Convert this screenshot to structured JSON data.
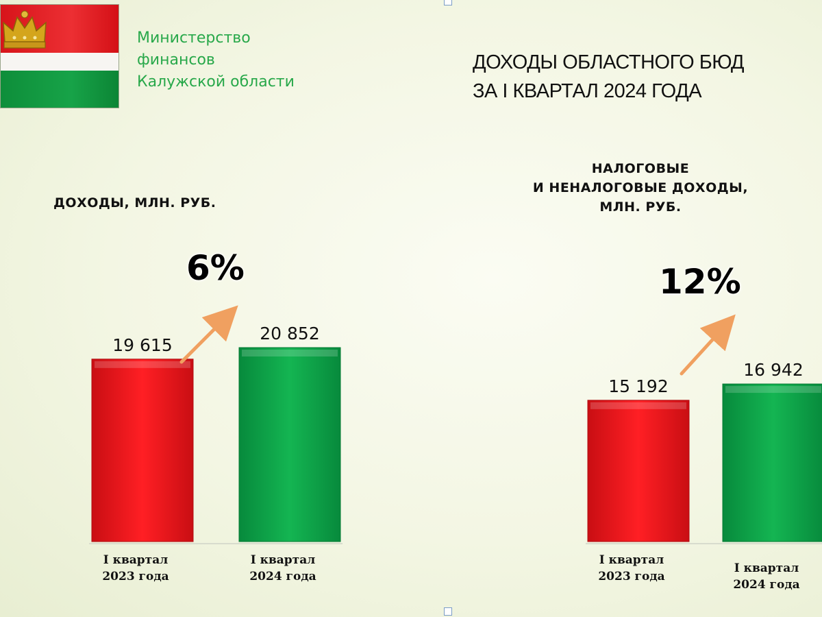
{
  "header": {
    "ministry_lines": [
      "Министерство",
      "финансов",
      "Калужской области"
    ],
    "title_lines": [
      "ДОХОДЫ ОБЛАСТНОГО БЮД",
      "ЗА I КВАРТАЛ 2024 ГОДА"
    ]
  },
  "colors": {
    "bar_2023": "#e8151b",
    "bar_2024": "#0faa4c",
    "arrow": "#f0a060",
    "ministry_text": "#28a84a"
  },
  "chart_data": [
    {
      "type": "bar",
      "title": "ДОХОДЫ,  МЛН. РУБ.",
      "categories": [
        "I квартал\n2023 года",
        "I квартал\n2024 года"
      ],
      "values": [
        19615,
        20852
      ],
      "value_labels": [
        "19 615",
        "20 852"
      ],
      "growth_label": "6%",
      "ylim": [
        0,
        21000
      ]
    },
    {
      "type": "bar",
      "title": "НАЛОГОВЫЕ\nИ НЕНАЛОГОВЫЕ  ДОХОДЫ,\nМЛН. РУБ.",
      "categories": [
        "I квартал\n2023 года",
        "I квартал\n2024 года"
      ],
      "values": [
        15192,
        16942
      ],
      "value_labels": [
        "15 192",
        "16 942"
      ],
      "growth_label": "12%",
      "ylim": [
        0,
        21000
      ]
    }
  ]
}
